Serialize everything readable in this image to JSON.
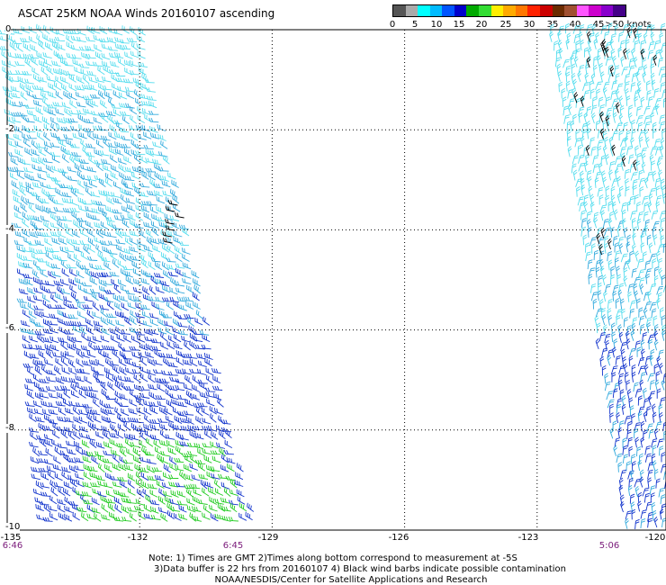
{
  "title": "ASCAT 25KM NOAA Winds 20160107 ascending",
  "legend": {
    "colors": [
      "#555555",
      "#aaaaaa",
      "#00ffff",
      "#00bbff",
      "#0055ff",
      "#0000cc",
      "#00aa00",
      "#33dd33",
      "#ffee00",
      "#ffaa00",
      "#ff7700",
      "#ff2200",
      "#cc0000",
      "#6b2b00",
      "#a05030",
      "#ff55ff",
      "#cc00cc",
      "#8800cc",
      "#440088"
    ],
    "labels": [
      "0",
      "5",
      "10",
      "15",
      "20",
      "25",
      "30",
      "35",
      "40",
      "45",
      ">50 knots"
    ]
  },
  "axes": {
    "lat_labels": [
      "0",
      "-2",
      "-4",
      "-6",
      "-8",
      "-10"
    ],
    "lon_labels": [
      "-135",
      "-132",
      "-129",
      "-126",
      "-123",
      "-120"
    ],
    "lat_range": [
      -10,
      0
    ],
    "lon_range": [
      -135,
      -120
    ]
  },
  "times": {
    "left": "6:46",
    "middle": "6:45",
    "right": "5:06"
  },
  "notes": {
    "line1": "Note: 1) Times are GMT 2)Times along bottom correspond to measurement at -5S",
    "line2": "3)Data buffer is 22 hrs from 20160107 4) Black wind barbs indicate possible contamination",
    "line3": "NOAA/NESDIS/Center for Satellite Applications and Research"
  },
  "wind_colors": {
    "light_cyan": "#55ddee",
    "cyan": "#33aadd",
    "blue": "#1133cc",
    "green": "#22cc22",
    "black": "#000000"
  }
}
